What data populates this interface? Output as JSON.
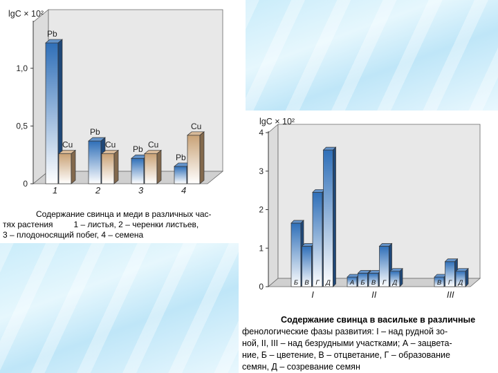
{
  "chart_data": [
    {
      "type": "bar",
      "ylabel": "lgC × 10²",
      "y_ticks": [
        "0",
        "0,5",
        "1,0"
      ],
      "ylim": [
        0,
        1.4
      ],
      "categories": [
        "1",
        "2",
        "3",
        "4"
      ],
      "series": [
        {
          "name": "Pb",
          "values": [
            1.22,
            0.37,
            0.22,
            0.15
          ]
        },
        {
          "name": "Cu",
          "values": [
            0.26,
            0.26,
            0.26,
            0.42
          ]
        }
      ],
      "colors": {
        "Pb": "#2f6fb8",
        "Cu": "#c9a276"
      },
      "grid": false
    },
    {
      "type": "bar",
      "ylabel": "lgC × 10²",
      "y_ticks": [
        "0",
        "1",
        "2",
        "3",
        "4"
      ],
      "ylim": [
        0,
        4
      ],
      "groups": [
        {
          "label": "I",
          "bars": [
            {
              "label": "Б",
              "value": 1.65
            },
            {
              "label": "В",
              "value": 1.05
            },
            {
              "label": "Г",
              "value": 2.45
            },
            {
              "label": "Д",
              "value": 3.55
            }
          ]
        },
        {
          "label": "II",
          "bars": [
            {
              "label": "А",
              "value": 0.25
            },
            {
              "label": "Б",
              "value": 0.35
            },
            {
              "label": "В",
              "value": 0.35
            },
            {
              "label": "Г",
              "value": 1.05
            },
            {
              "label": "Д",
              "value": 0.4
            }
          ]
        },
        {
          "label": "III",
          "bars": [
            {
              "label": "В",
              "value": 0.25
            },
            {
              "label": "Г",
              "value": 0.65
            },
            {
              "label": "Д",
              "value": 0.4
            }
          ]
        }
      ],
      "colors": {
        "bar": "#2f6fb8"
      },
      "grid": false
    }
  ],
  "captions": {
    "left": {
      "line1": "Содержание свинца и меди в различных час-",
      "line2": "тях растения         1 – листья, 2 – черенки листьев,",
      "line3": "3 – плодоносящий побег, 4 – семена"
    },
    "right": {
      "line1": "Содержание свинца в васильке в различные",
      "line2": "фенологические фазы развития: I – над рудной зо-",
      "line3": "ной, II, III – над безрудными участками; А – зацвета-",
      "line4": "ние, Б – цветение, В – отцветание, Г – образование",
      "line5": "семян, Д – созревание семян"
    }
  }
}
